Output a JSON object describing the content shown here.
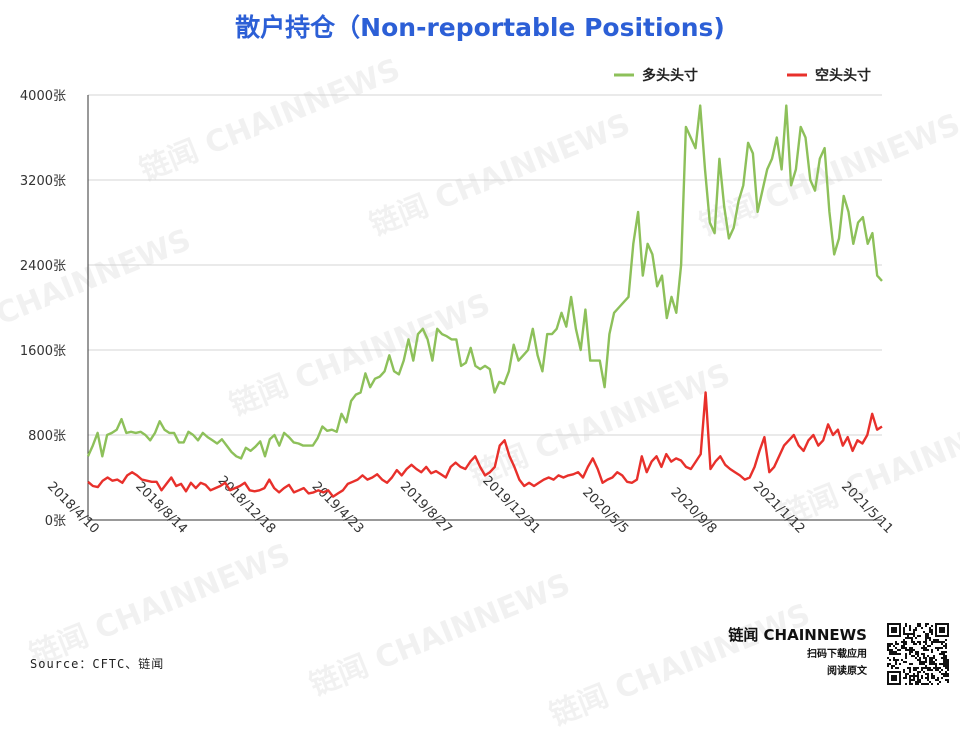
{
  "chart_data": {
    "type": "line",
    "title": "散户持仓（Non-reportable Positions)",
    "y_ticks": [
      "0张",
      "800张",
      "1600张",
      "2400张",
      "3200张",
      "4000张"
    ],
    "ylim": [
      0,
      4000
    ],
    "x_ticks": [
      "2018/4/10",
      "2018/8/14",
      "2018/12/18",
      "2019/4/23",
      "2019/8/27",
      "2019/12/31",
      "2020/5/5",
      "2020/9/8",
      "2021/1/12",
      "2021/5/11"
    ],
    "grid": true,
    "legend_position": "top-right",
    "series": [
      {
        "name": "多头头寸",
        "color": "#8dc05a",
        "values": [
          600,
          700,
          820,
          600,
          800,
          820,
          850,
          950,
          820,
          830,
          820,
          830,
          800,
          750,
          820,
          930,
          850,
          820,
          820,
          730,
          730,
          830,
          800,
          750,
          820,
          780,
          750,
          720,
          760,
          700,
          640,
          600,
          580,
          680,
          650,
          690,
          740,
          600,
          760,
          800,
          700,
          820,
          780,
          730,
          720,
          700,
          700,
          700,
          770,
          880,
          840,
          850,
          830,
          1000,
          920,
          1120,
          1180,
          1200,
          1380,
          1250,
          1330,
          1350,
          1400,
          1550,
          1400,
          1370,
          1500,
          1700,
          1500,
          1750,
          1800,
          1700,
          1500,
          1800,
          1750,
          1730,
          1700,
          1700,
          1450,
          1480,
          1620,
          1450,
          1420,
          1450,
          1420,
          1200,
          1300,
          1280,
          1400,
          1650,
          1500,
          1550,
          1600,
          1800,
          1550,
          1400,
          1750,
          1750,
          1800,
          1950,
          1820,
          2100,
          1800,
          1600,
          1980,
          1500,
          1500,
          1500,
          1250,
          1750,
          1950,
          2000,
          2050,
          2100,
          2600,
          2900,
          2300,
          2600,
          2500,
          2200,
          2300,
          1900,
          2100,
          1950,
          2400,
          3700,
          3600,
          3500,
          3900,
          3300,
          2800,
          2700,
          3400,
          2950,
          2650,
          2750,
          3000,
          3150,
          3550,
          3450,
          2900,
          3100,
          3300,
          3400,
          3600,
          3300,
          3900,
          3150,
          3300,
          3700,
          3600,
          3200,
          3100,
          3400,
          3500,
          2900,
          2500,
          2650,
          3050,
          2900,
          2600,
          2800,
          2850,
          2600,
          2700,
          2300,
          2250
        ]
      },
      {
        "name": "空头头寸",
        "color": "#e8302b",
        "values": [
          360,
          320,
          310,
          370,
          400,
          370,
          380,
          350,
          420,
          450,
          420,
          380,
          370,
          360,
          360,
          280,
          340,
          400,
          320,
          340,
          270,
          350,
          300,
          350,
          330,
          280,
          300,
          320,
          350,
          280,
          300,
          320,
          350,
          280,
          270,
          280,
          300,
          380,
          300,
          260,
          300,
          330,
          260,
          280,
          300,
          250,
          260,
          280,
          260,
          280,
          220,
          250,
          280,
          340,
          360,
          380,
          420,
          380,
          400,
          430,
          380,
          350,
          400,
          470,
          420,
          480,
          520,
          480,
          450,
          500,
          440,
          460,
          430,
          400,
          500,
          540,
          500,
          480,
          550,
          600,
          500,
          420,
          450,
          500,
          700,
          750,
          600,
          500,
          380,
          320,
          350,
          320,
          350,
          380,
          400,
          380,
          420,
          400,
          420,
          430,
          450,
          400,
          500,
          580,
          480,
          350,
          380,
          400,
          450,
          420,
          360,
          350,
          380,
          600,
          450,
          550,
          600,
          500,
          620,
          550,
          580,
          560,
          500,
          480,
          550,
          620,
          1200,
          480,
          550,
          600,
          520,
          480,
          450,
          420,
          380,
          400,
          500,
          650,
          780,
          450,
          500,
          600,
          700,
          750,
          800,
          700,
          650,
          750,
          800,
          700,
          750,
          900,
          800,
          850,
          700,
          780,
          650,
          750,
          720,
          800,
          1000,
          850,
          880
        ]
      }
    ]
  },
  "source": "Source：CFTC、链闻",
  "brand": {
    "name": "链闻 CHAINNEWS",
    "line1": "扫码下载应用",
    "line2": "阅读原文"
  }
}
